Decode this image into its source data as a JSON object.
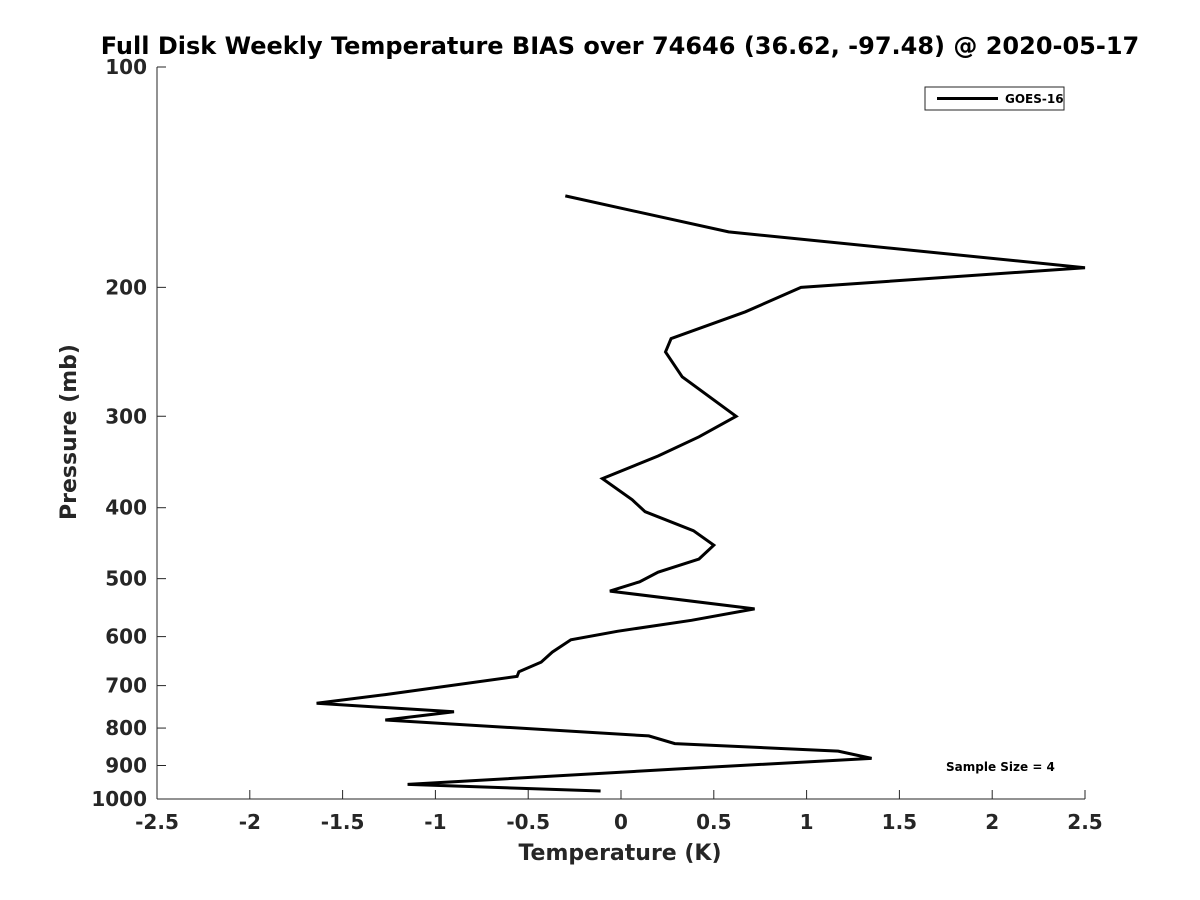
{
  "chart_data": {
    "type": "line",
    "title": "Full Disk Weekly Temperature BIAS over 74646 (36.62, -97.48) @ 2020-05-17",
    "xlabel": "Temperature (K)",
    "ylabel": "Pressure (mb)",
    "xlim": [
      -2.5,
      2.5
    ],
    "ylim": [
      100,
      1000
    ],
    "y_scale": "log",
    "y_reversed": true,
    "grid": false,
    "legend_position": "top-right",
    "x_ticks": [
      "-2.5",
      "-2",
      "-1.5",
      "-1",
      "-0.5",
      "0",
      "0.5",
      "1",
      "1.5",
      "2",
      "2.5"
    ],
    "y_ticks": [
      "100",
      "200",
      "300",
      "400",
      "500",
      "600",
      "700",
      "800",
      "900",
      "1000"
    ],
    "annotation": "Sample Size = 4",
    "series": [
      {
        "name": "GOES-16",
        "color": "#000000",
        "x": [
          -0.3,
          0.58,
          2.5,
          0.97,
          0.67,
          0.27,
          0.24,
          0.33,
          0.62,
          0.42,
          0.2,
          -0.1,
          0.06,
          0.13,
          0.39,
          0.5,
          0.42,
          0.2,
          0.1,
          -0.06,
          0.72,
          0.38,
          -0.02,
          -0.27,
          -0.37,
          -0.43,
          -0.55,
          -0.56,
          -1.27,
          -1.64,
          -0.9,
          -1.27,
          0.15,
          0.29,
          1.17,
          1.35,
          0.3,
          -1.15,
          -0.11
        ],
        "y": [
          150,
          168,
          188,
          200,
          216,
          235,
          245,
          265,
          300,
          320,
          340,
          365,
          390,
          405,
          430,
          450,
          470,
          490,
          505,
          520,
          550,
          570,
          590,
          606,
          630,
          650,
          670,
          680,
          720,
          740,
          760,
          780,
          820,
          840,
          860,
          880,
          910,
          955,
          975
        ]
      }
    ]
  }
}
